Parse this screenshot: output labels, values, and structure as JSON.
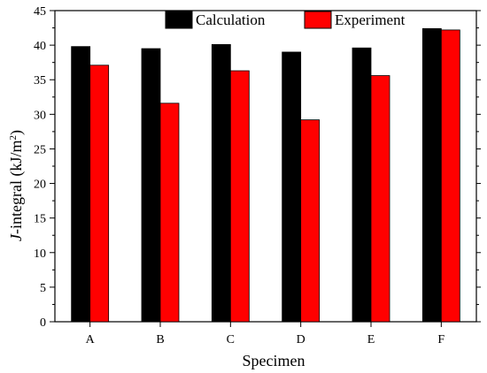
{
  "chart_data": {
    "type": "bar",
    "categories": [
      "A",
      "B",
      "C",
      "D",
      "E",
      "F"
    ],
    "series": [
      {
        "name": "Calculation",
        "color": "#000000",
        "values": [
          39.8,
          39.5,
          40.1,
          39.0,
          39.6,
          42.4
        ]
      },
      {
        "name": "Experiment",
        "color": "#ff0000",
        "values": [
          37.1,
          31.6,
          36.3,
          29.2,
          35.6,
          42.2
        ]
      }
    ],
    "xlabel": "Specimen",
    "ylabel_italic": "J",
    "ylabel_rest": "-integral (kJ/m",
    "ylabel_sup": "2",
    "ylabel_close": ")",
    "ylim": [
      0,
      45
    ],
    "yticks": [
      0,
      5,
      10,
      15,
      20,
      25,
      30,
      35,
      40,
      45
    ],
    "legend_position": "top-right",
    "grid": false
  }
}
